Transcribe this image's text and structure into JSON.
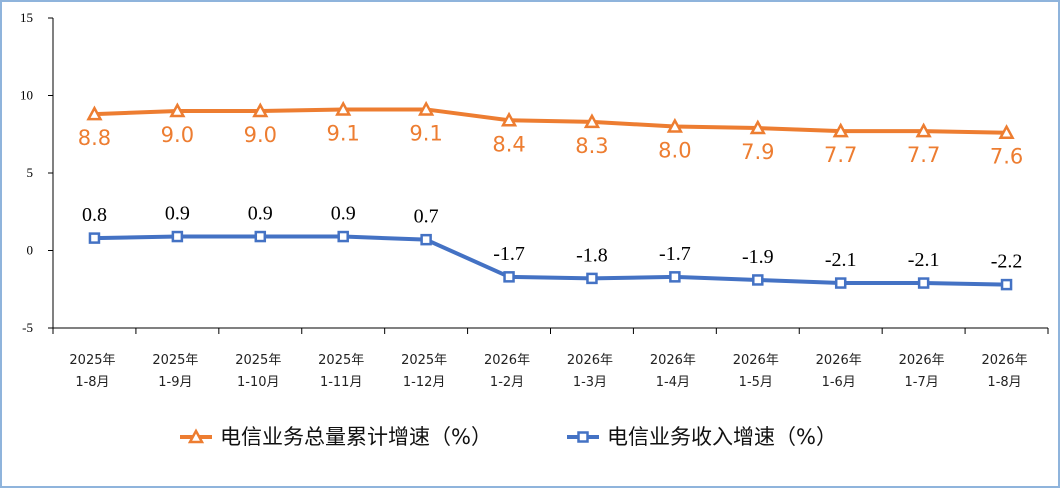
{
  "chart_data": {
    "type": "line",
    "ylim": [
      -5,
      15
    ],
    "yticks": [
      "15",
      "10",
      "5",
      "0",
      "-5"
    ],
    "categories": [
      [
        "2025年",
        "1-8月"
      ],
      [
        "2025年",
        "1-9月"
      ],
      [
        "2025年",
        "1-10月"
      ],
      [
        "2025年",
        "1-11月"
      ],
      [
        "2025年",
        "1-12月"
      ],
      [
        "2026年",
        "1-2月"
      ],
      [
        "2026年",
        "1-3月"
      ],
      [
        "2026年",
        "1-4月"
      ],
      [
        "2026年",
        "1-5月"
      ],
      [
        "2026年",
        "1-6月"
      ],
      [
        "2026年",
        "1-7月"
      ],
      [
        "2026年",
        "1-8月"
      ]
    ],
    "series": [
      {
        "name": "电信业务总量累计增速（%）",
        "color": "#ed7d31",
        "marker": "triangle",
        "values": [
          8.8,
          9.0,
          9.0,
          9.1,
          9.1,
          8.4,
          8.3,
          8.0,
          7.9,
          7.7,
          7.7,
          7.6
        ],
        "labels": [
          "8.8",
          "9.0",
          "9.0",
          "9.1",
          "9.1",
          "8.4",
          "8.3",
          "8.0",
          "7.9",
          "7.7",
          "7.7",
          "7.6"
        ]
      },
      {
        "name": "电信业务收入增速（%）",
        "color": "#4472c4",
        "marker": "square",
        "values": [
          0.8,
          0.9,
          0.9,
          0.9,
          0.7,
          -1.7,
          -1.8,
          -1.7,
          -1.9,
          -2.1,
          -2.1,
          -2.2
        ],
        "labels": [
          "0.8",
          "0.9",
          "0.9",
          "0.9",
          "0.7",
          "-1.7",
          "-1.8",
          "-1.7",
          "-1.9",
          "-2.1",
          "-2.1",
          "-2.2"
        ]
      }
    ],
    "grid": false,
    "legend": "bottom"
  }
}
